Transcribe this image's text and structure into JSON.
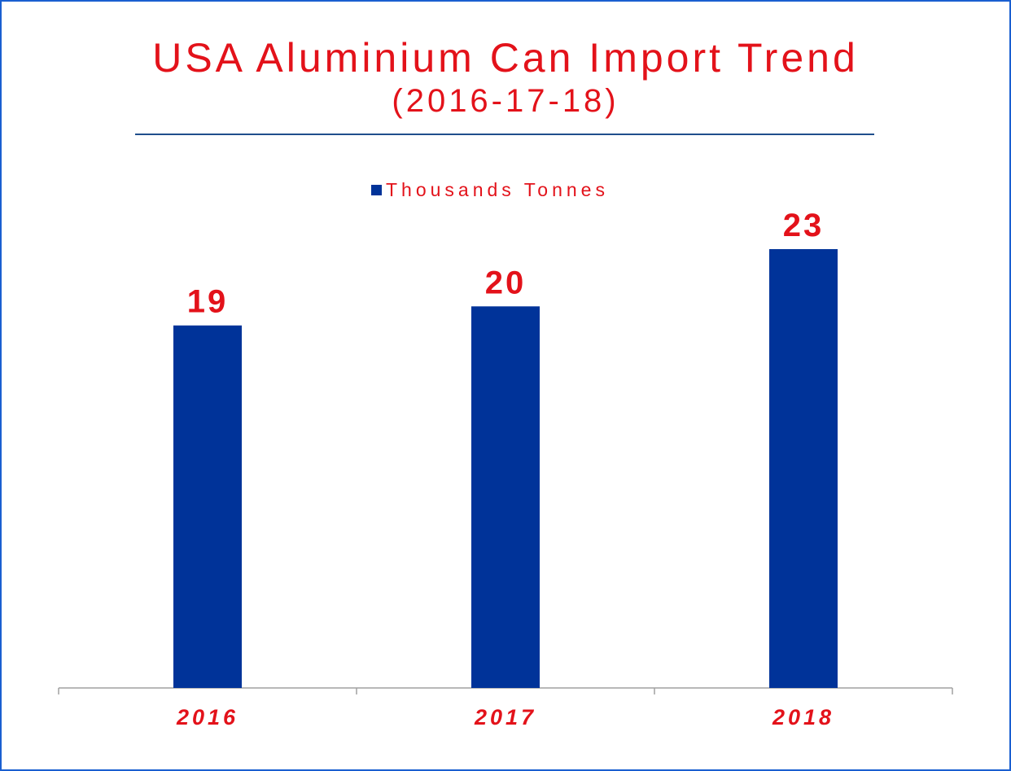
{
  "title": "USA Aluminium Can Import Trend",
  "subtitle": "(2016-17-18)",
  "colors": {
    "bar": "#003399",
    "text": "#e3121a",
    "frame": "#1a5fd0",
    "axis": "#a0a0a0",
    "rule": "#1f4e8c"
  },
  "chart_data": {
    "type": "bar",
    "title": "USA Aluminium Can Import Trend",
    "subtitle": "(2016-17-18)",
    "categories": [
      "2016",
      "2017",
      "2018"
    ],
    "series": [
      {
        "name": "Thousands Tonnes",
        "values": [
          19,
          20,
          23
        ]
      }
    ],
    "data_labels": [
      "19",
      "20",
      "23"
    ],
    "xlabel": "",
    "ylabel": "",
    "ylim": [
      0,
      25
    ],
    "legend_position": "top",
    "grid": false
  }
}
